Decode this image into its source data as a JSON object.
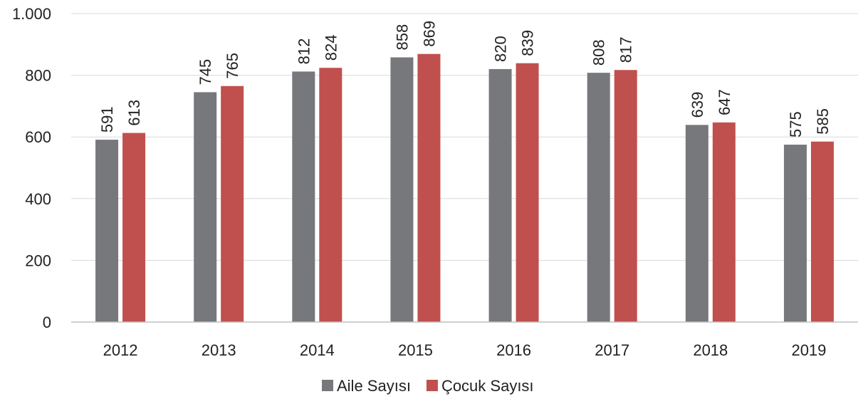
{
  "chart_data": {
    "type": "bar",
    "categories": [
      "2012",
      "2013",
      "2014",
      "2015",
      "2016",
      "2017",
      "2018",
      "2019"
    ],
    "series": [
      {
        "name": "Aile Sayısı",
        "color": "#77787b",
        "values": [
          591,
          745,
          812,
          858,
          820,
          808,
          639,
          575
        ]
      },
      {
        "name": "Çocuk Sayısı",
        "color": "#c0504d",
        "values": [
          613,
          765,
          824,
          869,
          839,
          817,
          647,
          585
        ]
      }
    ],
    "ylim": [
      0,
      1000
    ],
    "yticks": [
      0,
      200,
      400,
      600,
      800,
      1000
    ],
    "ytick_labels": [
      "0",
      "200",
      "400",
      "600",
      "800",
      "1.000"
    ],
    "grid": true,
    "legend_position": "bottom-center",
    "data_labels": true
  }
}
